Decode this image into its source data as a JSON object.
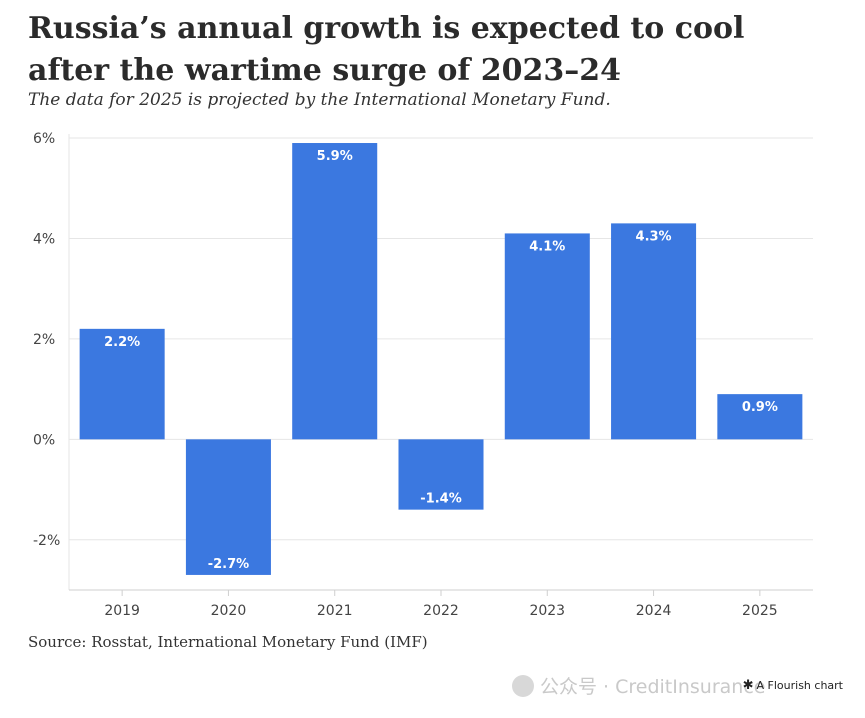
{
  "header": {
    "title": "Russia’s annual growth is expected to cool after the wartime surge of 2023–24",
    "subtitle": "The data for 2025 is projected by the International Monetary Fund."
  },
  "footer": {
    "source": "Source: Rosstat, International Monetary Fund (IMF)",
    "watermark": "公众号 · CreditInsurance",
    "flourish": "A Flourish chart"
  },
  "colors": {
    "bar": "#3b78e0",
    "grid": "#e6e6e6",
    "axis": "#cfcfcf",
    "text": "#333333"
  },
  "chart_data": {
    "type": "bar",
    "categories": [
      "2019",
      "2020",
      "2021",
      "2022",
      "2023",
      "2024",
      "2025"
    ],
    "values": [
      2.2,
      -2.7,
      5.9,
      -1.4,
      4.1,
      4.3,
      0.9
    ],
    "value_labels": [
      "2.2%",
      "-2.7%",
      "5.9%",
      "-1.4%",
      "4.1%",
      "4.3%",
      "0.9%"
    ],
    "title": "Russia’s annual growth is expected to cool after the wartime surge of 2023–24",
    "subtitle": "The data for 2025 is projected by the International Monetary Fund.",
    "xlabel": "",
    "ylabel": "",
    "ylim": [
      -3,
      6
    ],
    "yticks": [
      6,
      4,
      2,
      0,
      -2
    ],
    "ytick_labels": [
      "6%",
      "4%",
      "2%",
      "0%",
      "-2%"
    ],
    "grid": true,
    "legend": "none"
  }
}
